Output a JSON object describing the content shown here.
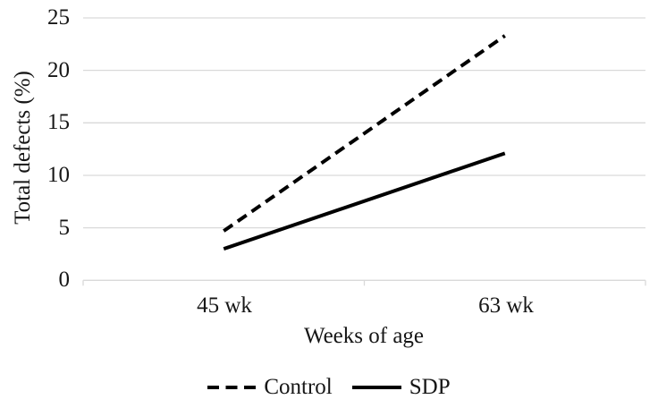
{
  "chart_data": {
    "type": "line",
    "categories": [
      "45 wk",
      "63 wk"
    ],
    "series": [
      {
        "name": "Control",
        "values": [
          4.7,
          23.3
        ],
        "line_style": "dashed",
        "color": "#000000"
      },
      {
        "name": "SDP",
        "values": [
          3.0,
          12.1
        ],
        "line_style": "solid",
        "color": "#000000"
      }
    ],
    "title": "",
    "xlabel": "Weeks of age",
    "ylabel": "Total defects (%)",
    "ylim": [
      0,
      25
    ],
    "yticks": [
      0,
      5,
      10,
      15,
      20,
      25
    ],
    "ytick_labels": [
      "25",
      "20",
      "15",
      "10",
      "5",
      "0"
    ],
    "grid": "horizontal",
    "gridline_color": "#d9d9d9",
    "axis_color": "#d9d9d9",
    "legend_position": "bottom"
  }
}
